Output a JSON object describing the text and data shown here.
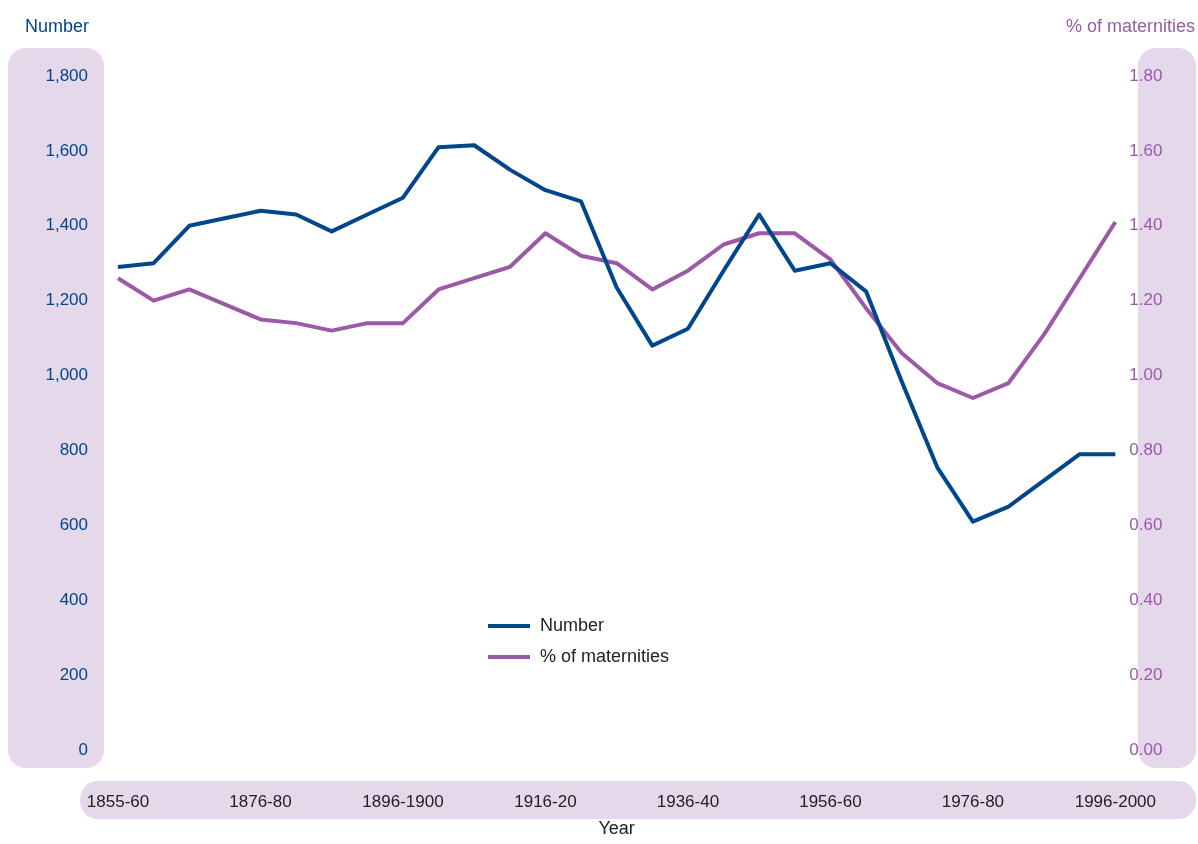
{
  "chart_data": {
    "type": "line",
    "xlabel": "Year",
    "ylabel": "Number",
    "y2label": "% of maternities",
    "categories": [
      "1855-60",
      null,
      null,
      null,
      "1876-80",
      null,
      null,
      null,
      "1896-1900",
      null,
      null,
      null,
      "1916-20",
      null,
      null,
      null,
      "1936-40",
      null,
      null,
      null,
      "1956-60",
      null,
      null,
      null,
      "1976-80",
      null,
      null,
      null,
      "1996-2000"
    ],
    "series": [
      {
        "name": "Number",
        "color": "#00468b",
        "values": [
          1290,
          1300,
          1400,
          1420,
          1440,
          1430,
          1385,
          1430,
          1475,
          1610,
          1615,
          1550,
          1495,
          1465,
          1235,
          1080,
          1125,
          1280,
          1430,
          1280,
          1300,
          1225,
          985,
          755,
          610,
          650,
          720,
          790,
          790
        ]
      },
      {
        "name": "% of maternities",
        "color": "#9b59a8",
        "axis": "y2",
        "values": [
          1.26,
          1.2,
          1.23,
          1.19,
          1.15,
          1.14,
          1.12,
          1.14,
          1.14,
          1.23,
          1.26,
          1.29,
          1.38,
          1.32,
          1.3,
          1.23,
          1.28,
          1.35,
          1.38,
          1.38,
          1.31,
          1.18,
          1.06,
          0.98,
          0.94,
          0.98,
          1.11,
          1.26,
          1.41
        ]
      }
    ],
    "ylim": [
      0,
      1800
    ],
    "yticks": [
      0,
      200,
      400,
      600,
      800,
      {
        "value": 1000,
        "label": "1,000"
      },
      {
        "value": 1200,
        "label": "1,200"
      },
      {
        "value": 1400,
        "label": "1,400"
      },
      {
        "value": 1600,
        "label": "1,600"
      },
      {
        "value": 1800,
        "label": "1,800"
      }
    ],
    "y2lim": [
      0,
      1.8
    ],
    "y2ticks": [
      {
        "value": 0,
        "label": "0.00"
      },
      {
        "value": 0.2,
        "label": "0.20"
      },
      {
        "value": 0.4,
        "label": "0.40"
      },
      {
        "value": 0.6,
        "label": "0.60"
      },
      {
        "value": 0.8,
        "label": "0.80"
      },
      {
        "value": 1,
        "label": "1.00"
      },
      {
        "value": 1.2,
        "label": "1.20"
      },
      {
        "value": 1.4,
        "label": "1.40"
      },
      {
        "value": 1.6,
        "label": "1.60"
      },
      {
        "value": 1.8,
        "label": "1.80"
      }
    ],
    "grid": false,
    "legend": "bottom",
    "marker": "none",
    "line_style": "solid"
  }
}
